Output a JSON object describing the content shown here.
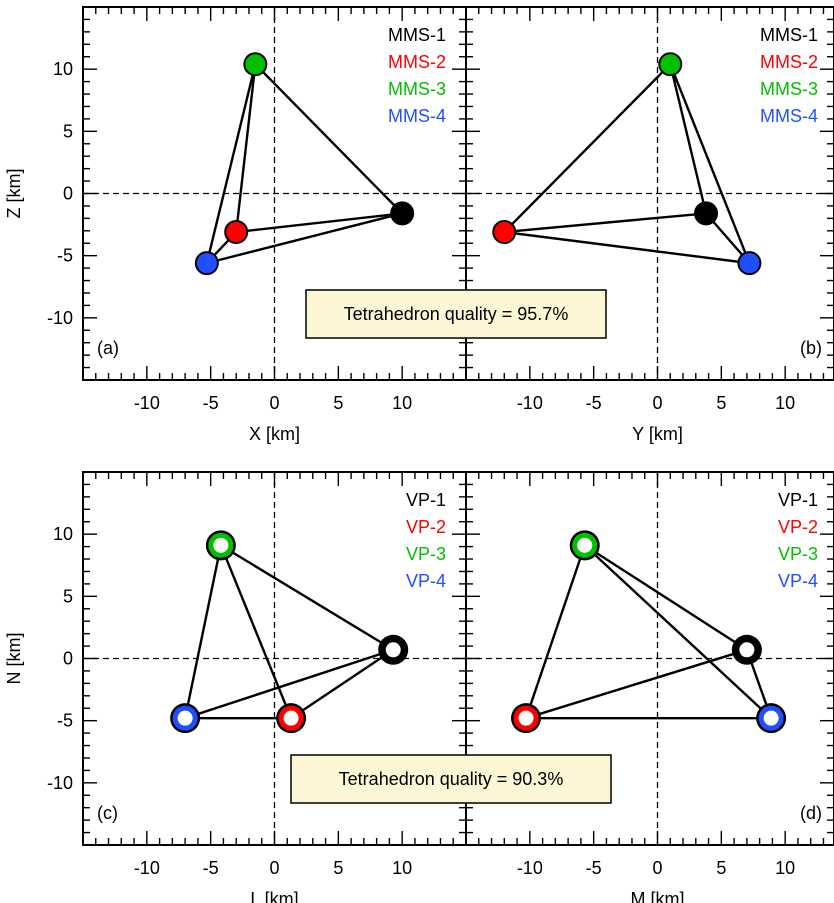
{
  "chart_data": [
    {
      "panel": "(a)",
      "type": "scatter",
      "xlabel": "X [km]",
      "ylabel": "Z [km]",
      "xlim": [
        -15,
        15
      ],
      "ylim": [
        -15,
        15
      ],
      "xticks": [
        "-10",
        "-5",
        "0",
        "5",
        "10"
      ],
      "yticks": [
        "-10",
        "-5",
        "0",
        "5",
        "10"
      ],
      "marker_style": "filled",
      "points": [
        {
          "label": "MMS-1",
          "color": "#000000",
          "x": 10.0,
          "y": -1.6
        },
        {
          "label": "MMS-2",
          "color": "#ff0000",
          "x": -3.0,
          "y": -3.1
        },
        {
          "label": "MMS-3",
          "color": "#00c000",
          "x": -1.5,
          "y": 10.4
        },
        {
          "label": "MMS-4",
          "color": "#1f4fff",
          "x": -5.3,
          "y": -5.6
        }
      ]
    },
    {
      "panel": "(b)",
      "type": "scatter",
      "xlabel": "Y [km]",
      "ylabel": "",
      "xlim": [
        -15,
        15
      ],
      "ylim": [
        -15,
        15
      ],
      "xticks": [
        "-10",
        "-5",
        "0",
        "5",
        "10"
      ],
      "yticks": [],
      "marker_style": "filled",
      "points": [
        {
          "label": "MMS-1",
          "color": "#000000",
          "x": 3.8,
          "y": -1.6
        },
        {
          "label": "MMS-2",
          "color": "#ff0000",
          "x": -12.0,
          "y": -3.1
        },
        {
          "label": "MMS-3",
          "color": "#00c000",
          "x": 1.0,
          "y": 10.4
        },
        {
          "label": "MMS-4",
          "color": "#1f4fff",
          "x": 7.2,
          "y": -5.6
        }
      ]
    },
    {
      "panel": "(c)",
      "type": "scatter",
      "xlabel": "L [km]",
      "ylabel": "N [km]",
      "xlim": [
        -15,
        15
      ],
      "ylim": [
        -15,
        15
      ],
      "xticks": [
        "-10",
        "-5",
        "0",
        "5",
        "10"
      ],
      "yticks": [
        "-10",
        "-5",
        "0",
        "5",
        "10"
      ],
      "marker_style": "ring",
      "points": [
        {
          "label": "VP-1",
          "color": "#000000",
          "x": 9.3,
          "y": 0.7
        },
        {
          "label": "VP-2",
          "color": "#ff0000",
          "x": 1.3,
          "y": -4.8
        },
        {
          "label": "VP-3",
          "color": "#00c000",
          "x": -4.2,
          "y": 9.1
        },
        {
          "label": "VP-4",
          "color": "#1f4fff",
          "x": -7.0,
          "y": -4.8
        }
      ]
    },
    {
      "panel": "(d)",
      "type": "scatter",
      "xlabel": "M [km]",
      "ylabel": "",
      "xlim": [
        -15,
        15
      ],
      "ylim": [
        -15,
        15
      ],
      "xticks": [
        "-10",
        "-5",
        "0",
        "5",
        "10"
      ],
      "yticks": [],
      "marker_style": "ring",
      "points": [
        {
          "label": "VP-1",
          "color": "#000000",
          "x": 7.0,
          "y": 0.7
        },
        {
          "label": "VP-2",
          "color": "#ff0000",
          "x": -10.3,
          "y": -4.8
        },
        {
          "label": "VP-3",
          "color": "#00c000",
          "x": -5.7,
          "y": 9.1
        },
        {
          "label": "VP-4",
          "color": "#1f4fff",
          "x": 8.9,
          "y": -4.8
        }
      ]
    }
  ],
  "annotations": [
    {
      "text": "Tetrahedron quality = 95.7%"
    },
    {
      "text": "Tetrahedron quality = 90.3%"
    }
  ],
  "colors": {
    "quality_box_fill": "#fdf6d4",
    "frame": "#000000"
  }
}
